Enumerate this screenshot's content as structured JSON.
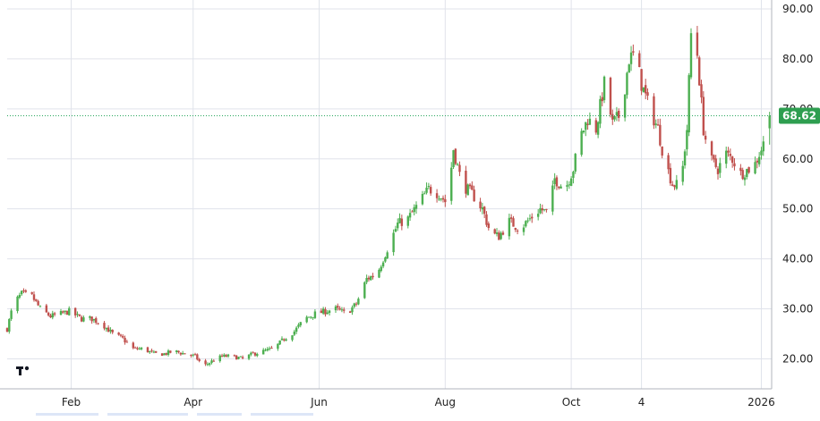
{
  "chart_data": {
    "type": "candlestick",
    "title": "",
    "xlabel": "",
    "ylabel": "",
    "ylim": [
      14,
      90
    ],
    "yticks": [
      20,
      30,
      40,
      50,
      60,
      70,
      80,
      90
    ],
    "ytick_labels": [
      "20.00",
      "30.00",
      "40.00",
      "50.00",
      "60.00",
      "70.00",
      "80.00",
      "90.00"
    ],
    "xticks": [
      {
        "label": "Feb",
        "date": "2025-02-01"
      },
      {
        "label": "Apr",
        "date": "2025-04-01"
      },
      {
        "label": "Jun",
        "date": "2025-06-01"
      },
      {
        "label": "Aug",
        "date": "2025-08-01"
      },
      {
        "label": "Oct",
        "date": "2025-10-01"
      },
      {
        "label": "4",
        "date": "2025-11-04"
      },
      {
        "label": "2026",
        "date": "2026-01-01"
      }
    ],
    "x_range": [
      "2025-01-01",
      "2026-01-06"
    ],
    "last_price": 68.62,
    "last_price_label": "68.62",
    "grid": true,
    "colors": {
      "up": "#4caf50",
      "down": "#c0504d",
      "grid": "#e0e3eb",
      "price_line": "#26a65b",
      "badge": "#2e9e50"
    },
    "close_path": [
      [
        "2025-01-01",
        26
      ],
      [
        "2025-01-04",
        31
      ],
      [
        "2025-01-08",
        33
      ],
      [
        "2025-01-13",
        32.5
      ],
      [
        "2025-01-17",
        30
      ],
      [
        "2025-01-22",
        28.5
      ],
      [
        "2025-01-27",
        29
      ],
      [
        "2025-01-31",
        29.5
      ],
      [
        "2025-02-06",
        28
      ],
      [
        "2025-02-11",
        28
      ],
      [
        "2025-02-16",
        27
      ],
      [
        "2025-02-21",
        25
      ],
      [
        "2025-02-26",
        24
      ],
      [
        "2025-03-03",
        22
      ],
      [
        "2025-03-08",
        22
      ],
      [
        "2025-03-13",
        21
      ],
      [
        "2025-03-18",
        21
      ],
      [
        "2025-03-23",
        21.5
      ],
      [
        "2025-03-28",
        21
      ],
      [
        "2025-04-02",
        20.5
      ],
      [
        "2025-04-06",
        18.5
      ],
      [
        "2025-04-10",
        19.5
      ],
      [
        "2025-04-15",
        20.5
      ],
      [
        "2025-04-20",
        20.5
      ],
      [
        "2025-04-25",
        20
      ],
      [
        "2025-04-30",
        21
      ],
      [
        "2025-05-05",
        21.5
      ],
      [
        "2025-05-10",
        22
      ],
      [
        "2025-05-15",
        24
      ],
      [
        "2025-05-20",
        25.5
      ],
      [
        "2025-05-25",
        28
      ],
      [
        "2025-05-30",
        29
      ],
      [
        "2025-06-04",
        29.5
      ],
      [
        "2025-06-09",
        30
      ],
      [
        "2025-06-14",
        29
      ],
      [
        "2025-06-19",
        31
      ],
      [
        "2025-06-24",
        36
      ],
      [
        "2025-06-29",
        37
      ],
      [
        "2025-07-04",
        42
      ],
      [
        "2025-07-09",
        47
      ],
      [
        "2025-07-14",
        48
      ],
      [
        "2025-07-19",
        51
      ],
      [
        "2025-07-24",
        54
      ],
      [
        "2025-07-29",
        53
      ],
      [
        "2025-08-02",
        51
      ],
      [
        "2025-08-05",
        62
      ],
      [
        "2025-08-09",
        55
      ],
      [
        "2025-08-14",
        53
      ],
      [
        "2025-08-19",
        50
      ],
      [
        "2025-08-23",
        45
      ],
      [
        "2025-08-27",
        44.5
      ],
      [
        "2025-09-01",
        47.5
      ],
      [
        "2025-09-06",
        46
      ],
      [
        "2025-09-11",
        48
      ],
      [
        "2025-09-16",
        50
      ],
      [
        "2025-09-20",
        49
      ],
      [
        "2025-09-23",
        56
      ],
      [
        "2025-09-28",
        54
      ],
      [
        "2025-10-02",
        58
      ],
      [
        "2025-10-05",
        64
      ],
      [
        "2025-10-09",
        68
      ],
      [
        "2025-10-13",
        66
      ],
      [
        "2025-10-17",
        75
      ],
      [
        "2025-10-21",
        67
      ],
      [
        "2025-10-25",
        69
      ],
      [
        "2025-10-29",
        80
      ],
      [
        "2025-11-01",
        81
      ],
      [
        "2025-11-04",
        75
      ],
      [
        "2025-11-08",
        70
      ],
      [
        "2025-11-12",
        66
      ],
      [
        "2025-11-15",
        60
      ],
      [
        "2025-11-19",
        55
      ],
      [
        "2025-11-23",
        54.5
      ],
      [
        "2025-11-26",
        66
      ],
      [
        "2025-11-28",
        85
      ],
      [
        "2025-12-01",
        81
      ],
      [
        "2025-12-04",
        66
      ],
      [
        "2025-12-07",
        60
      ],
      [
        "2025-12-11",
        58
      ],
      [
        "2025-12-15",
        61
      ],
      [
        "2025-12-18",
        60
      ],
      [
        "2025-12-22",
        57
      ],
      [
        "2025-12-26",
        58
      ],
      [
        "2025-12-29",
        59
      ],
      [
        "2026-01-02",
        63
      ],
      [
        "2026-01-05",
        68.62
      ]
    ]
  }
}
